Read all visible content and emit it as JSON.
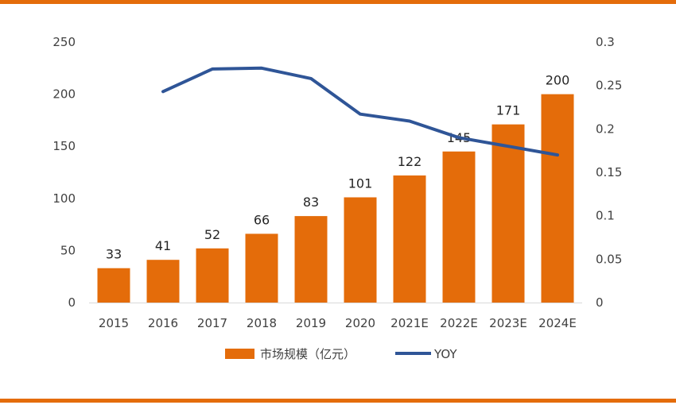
{
  "chart_data": {
    "type": "bar",
    "categories": [
      "2015",
      "2016",
      "2017",
      "2018",
      "2019",
      "2020",
      "2021E",
      "2022E",
      "2023E",
      "2024E"
    ],
    "series": [
      {
        "name": "市场规模（亿元）",
        "type": "bar",
        "axis": "left",
        "values": [
          33,
          41,
          52,
          66,
          83,
          101,
          122,
          145,
          171,
          200
        ]
      },
      {
        "name": "YOY",
        "type": "line",
        "axis": "right",
        "values": [
          null,
          0.243,
          0.269,
          0.27,
          0.258,
          0.217,
          0.209,
          0.19,
          0.18,
          0.17
        ]
      }
    ],
    "y_left": {
      "min": 0,
      "max": 250,
      "ticks": [
        "0",
        "50",
        "100",
        "150",
        "200",
        "250"
      ]
    },
    "y_right": {
      "min": 0,
      "max": 0.3,
      "ticks": [
        "0",
        "0.05",
        "0.1",
        "0.15",
        "0.2",
        "0.25",
        "0.3"
      ]
    },
    "data_labels": [
      "33",
      "41",
      "52",
      "66",
      "83",
      "101",
      "122",
      "145",
      "171",
      "200"
    ],
    "legend_position": "bottom",
    "grid": false,
    "colors": {
      "bar": "#E46C0A",
      "line": "#2F5597",
      "frame": "#E46C0A",
      "axis": "#D9D9D9",
      "text": "#404040"
    }
  }
}
